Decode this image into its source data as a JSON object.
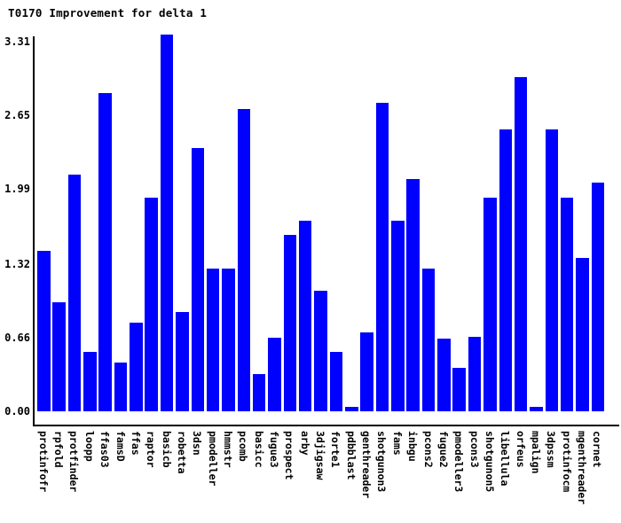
{
  "title": "T0170 Improvement for delta 1",
  "colors": {
    "bar": "#0000ff",
    "axis": "#000000",
    "text": "#000000",
    "background": "#ffffff"
  },
  "y_axis": {
    "ticks": [
      "3.31",
      "2.65",
      "1.99",
      "1.32",
      "0.66",
      "0.00"
    ],
    "tick_values": [
      3.31,
      2.65,
      1.99,
      1.32,
      0.66,
      0
    ]
  },
  "chart_data": {
    "type": "bar",
    "title": "T0170 Improvement for delta 1",
    "xlabel": "",
    "ylabel": "",
    "ylim": [
      0,
      3.37
    ],
    "grid": false,
    "legend": false,
    "bar_color": "#0000ff",
    "categories": [
      "protinfofr",
      "rpfold",
      "protfinder",
      "loopp",
      "ffas03",
      "famsD",
      "ffas",
      "raptor",
      "basicb",
      "robetta",
      "3dsn",
      "pmodeller",
      "hmmstr",
      "pcomb",
      "basicc",
      "fugue3",
      "prospect",
      "arby",
      "3djigsaw",
      "forte1",
      "pdbblast",
      "genthreader",
      "shotgunon3",
      "fams",
      "inbgu",
      "pcons2",
      "fugue2",
      "pmodeller3",
      "pcons3",
      "shotgunon5",
      "libellula",
      "orfeus",
      "mpalign",
      "3dpssm",
      "protinfocm",
      "mgenthreader",
      "cornet"
    ],
    "values": [
      1.44,
      0.98,
      2.12,
      0.53,
      2.85,
      0.44,
      0.79,
      1.91,
      3.37,
      0.89,
      2.36,
      1.28,
      1.28,
      2.71,
      0.33,
      0.66,
      1.58,
      1.71,
      1.08,
      0.53,
      0.04,
      0.71,
      2.76,
      1.71,
      2.08,
      1.28,
      0.65,
      0.39,
      0.67,
      1.91,
      2.52,
      2.99,
      0.04,
      2.52,
      1.91,
      1.37,
      2.05
    ]
  }
}
